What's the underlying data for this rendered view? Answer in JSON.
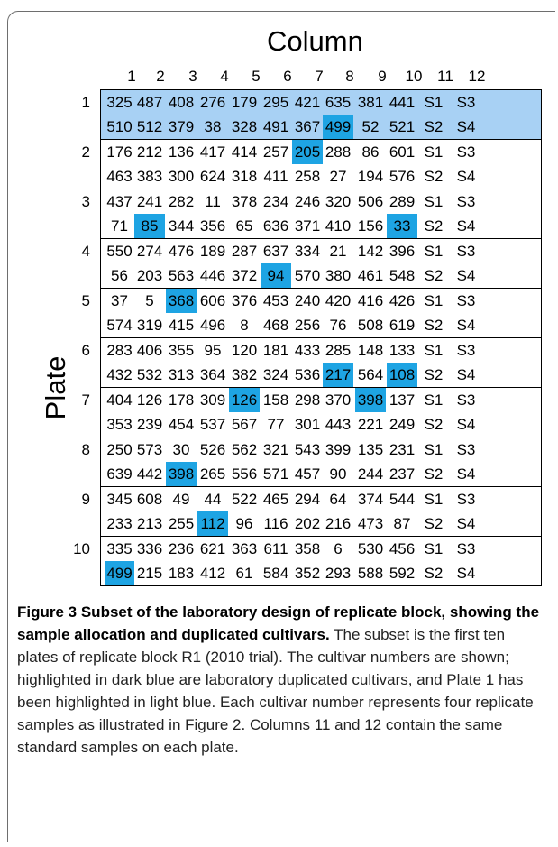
{
  "column_title": "Column",
  "row_title": "Plate",
  "columns": [
    "1",
    "2",
    "3",
    "4",
    "5",
    "6",
    "7",
    "8",
    "9",
    "10",
    "11",
    "12"
  ],
  "plates": [
    {
      "label": "1",
      "rows": [
        [
          "325",
          "487",
          "408",
          "276",
          "179",
          "295",
          "421",
          "635",
          "381",
          "441",
          "S1",
          "S3"
        ],
        [
          "510",
          "512",
          "379",
          "38",
          "328",
          "491",
          "367",
          "499",
          "52",
          "521",
          "S2",
          "S4"
        ]
      ],
      "highlight": [
        [],
        [
          7
        ]
      ],
      "light_blue": true
    },
    {
      "label": "2",
      "rows": [
        [
          "176",
          "212",
          "136",
          "417",
          "414",
          "257",
          "205",
          "288",
          "86",
          "601",
          "S1",
          "S3"
        ],
        [
          "463",
          "383",
          "300",
          "624",
          "318",
          "411",
          "258",
          "27",
          "194",
          "576",
          "S2",
          "S4"
        ]
      ],
      "highlight": [
        [
          6
        ],
        []
      ]
    },
    {
      "label": "3",
      "rows": [
        [
          "437",
          "241",
          "282",
          "11",
          "378",
          "234",
          "246",
          "320",
          "506",
          "289",
          "S1",
          "S3"
        ],
        [
          "71",
          "85",
          "344",
          "356",
          "65",
          "636",
          "371",
          "410",
          "156",
          "33",
          "S2",
          "S4"
        ]
      ],
      "highlight": [
        [],
        [
          1,
          9
        ]
      ]
    },
    {
      "label": "4",
      "rows": [
        [
          "550",
          "274",
          "476",
          "189",
          "287",
          "637",
          "334",
          "21",
          "142",
          "396",
          "S1",
          "S3"
        ],
        [
          "56",
          "203",
          "563",
          "446",
          "372",
          "94",
          "570",
          "380",
          "461",
          "548",
          "S2",
          "S4"
        ]
      ],
      "highlight": [
        [],
        [
          5
        ]
      ]
    },
    {
      "label": "5",
      "rows": [
        [
          "37",
          "5",
          "368",
          "606",
          "376",
          "453",
          "240",
          "420",
          "416",
          "426",
          "S1",
          "S3"
        ],
        [
          "574",
          "319",
          "415",
          "496",
          "8",
          "468",
          "256",
          "76",
          "508",
          "619",
          "S2",
          "S4"
        ]
      ],
      "highlight": [
        [
          2
        ],
        []
      ]
    },
    {
      "label": "6",
      "rows": [
        [
          "283",
          "406",
          "355",
          "95",
          "120",
          "181",
          "433",
          "285",
          "148",
          "133",
          "S1",
          "S3"
        ],
        [
          "432",
          "532",
          "313",
          "364",
          "382",
          "324",
          "536",
          "217",
          "564",
          "108",
          "S2",
          "S4"
        ]
      ],
      "highlight": [
        [],
        [
          7,
          9
        ]
      ]
    },
    {
      "label": "7",
      "rows": [
        [
          "404",
          "126",
          "178",
          "309",
          "126",
          "158",
          "298",
          "370",
          "398",
          "137",
          "S1",
          "S3"
        ],
        [
          "353",
          "239",
          "454",
          "537",
          "567",
          "77",
          "301",
          "443",
          "221",
          "249",
          "S2",
          "S4"
        ]
      ],
      "highlight": [
        [
          4,
          8
        ],
        []
      ]
    },
    {
      "label": "8",
      "rows": [
        [
          "250",
          "573",
          "30",
          "526",
          "562",
          "321",
          "543",
          "399",
          "135",
          "231",
          "S1",
          "S3"
        ],
        [
          "639",
          "442",
          "398",
          "265",
          "556",
          "571",
          "457",
          "90",
          "244",
          "237",
          "S2",
          "S4"
        ]
      ],
      "highlight": [
        [],
        [
          2
        ]
      ]
    },
    {
      "label": "9",
      "rows": [
        [
          "345",
          "608",
          "49",
          "44",
          "522",
          "465",
          "294",
          "64",
          "374",
          "544",
          "S1",
          "S3"
        ],
        [
          "233",
          "213",
          "255",
          "112",
          "96",
          "116",
          "202",
          "216",
          "473",
          "87",
          "S2",
          "S4"
        ]
      ],
      "highlight": [
        [],
        [
          3
        ]
      ]
    },
    {
      "label": "10",
      "rows": [
        [
          "335",
          "336",
          "236",
          "621",
          "363",
          "611",
          "358",
          "6",
          "530",
          "456",
          "S1",
          "S3"
        ],
        [
          "499",
          "215",
          "183",
          "412",
          "61",
          "584",
          "352",
          "293",
          "588",
          "592",
          "S2",
          "S4"
        ]
      ],
      "highlight": [
        [],
        [
          0
        ]
      ]
    }
  ],
  "colors": {
    "light_blue": "#a8d1f4",
    "dark_blue": "#1ea4e3"
  },
  "caption": {
    "bold": "Figure 3 Subset of the laboratory design of replicate block, showing the sample allocation and duplicated cultivars.",
    "text": " The subset is the first ten plates of replicate block R1 (2010 trial). The cultivar numbers are shown; highlighted in dark blue are laboratory duplicated cultivars, and Plate 1 has been highlighted in light blue. Each cultivar number represents four replicate samples as illustrated in Figure 2. Columns 11 and 12 contain the same standard samples on each plate."
  }
}
